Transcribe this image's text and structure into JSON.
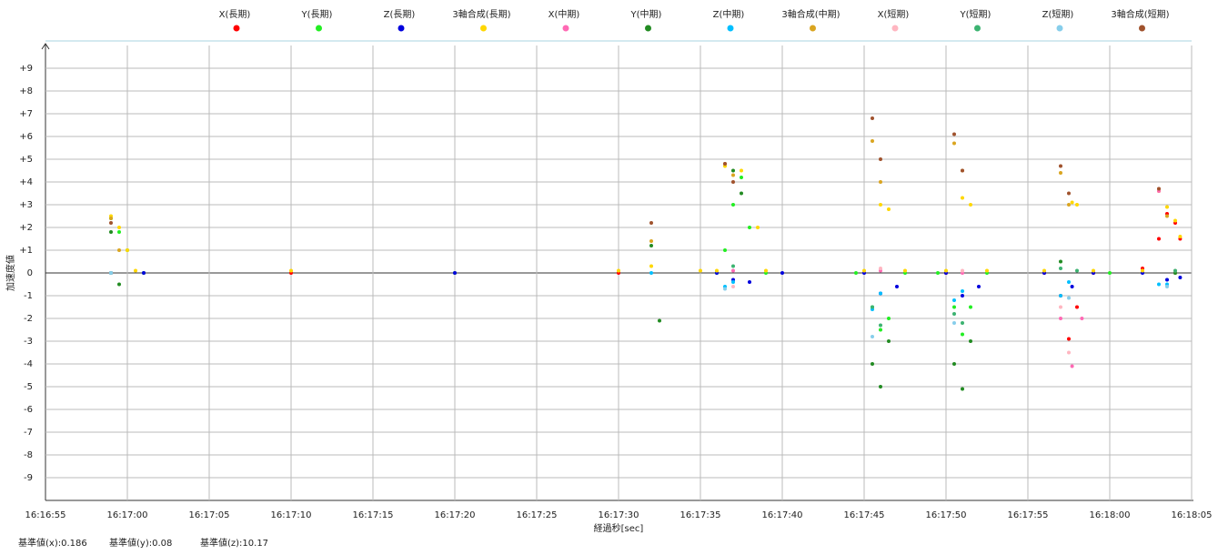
{
  "chart_data": {
    "type": "scatter",
    "x_label": "経過秒[sec]",
    "y_label": "加速度値",
    "notes": [
      "基準値(x):0.186",
      "基準値(y):0.08",
      "基準値(z):10.17"
    ],
    "xlim": [
      58615,
      58685
    ],
    "ylim": [
      -10,
      10
    ],
    "xticks": [
      {
        "value": 58615,
        "label": "16:16:55"
      },
      {
        "value": 58620,
        "label": "16:17:00"
      },
      {
        "value": 58625,
        "label": "16:17:05"
      },
      {
        "value": 58630,
        "label": "16:17:10"
      },
      {
        "value": 58635,
        "label": "16:17:15"
      },
      {
        "value": 58640,
        "label": "16:17:20"
      },
      {
        "value": 58645,
        "label": "16:17:25"
      },
      {
        "value": 58650,
        "label": "16:17:30"
      },
      {
        "value": 58655,
        "label": "16:17:35"
      },
      {
        "value": 58660,
        "label": "16:17:40"
      },
      {
        "value": 58665,
        "label": "16:17:45"
      },
      {
        "value": 58670,
        "label": "16:17:50"
      },
      {
        "value": 58675,
        "label": "16:17:55"
      },
      {
        "value": 58680,
        "label": "16:18:00"
      },
      {
        "value": 58685,
        "label": "16:18:05"
      }
    ],
    "yticks": [
      {
        "value": 9,
        "label": "+9"
      },
      {
        "value": 8,
        "label": "+8"
      },
      {
        "value": 7,
        "label": "+7"
      },
      {
        "value": 6,
        "label": "+6"
      },
      {
        "value": 5,
        "label": "+5"
      },
      {
        "value": 4,
        "label": "+4"
      },
      {
        "value": 3,
        "label": "+3"
      },
      {
        "value": 2,
        "label": "+2"
      },
      {
        "value": 1,
        "label": "+1"
      },
      0,
      -1,
      -2,
      -3,
      -4,
      -5,
      -6,
      -7,
      -8,
      -9
    ],
    "grid": true,
    "series": [
      {
        "name": "X(長期)",
        "color": "#ff0000",
        "x": [
          58619,
          58630,
          58650,
          58670,
          58676,
          58677,
          58677.5,
          58678,
          58679,
          58682,
          58683,
          58683.5,
          58684,
          58684.3
        ],
        "values": [
          0,
          0,
          0,
          0,
          0,
          -1,
          -2.9,
          -1.5,
          0,
          0.2,
          1.5,
          2.6,
          2.2,
          1.5
        ]
      },
      {
        "name": "Y(長期)",
        "color": "#22ee22",
        "x": [
          58619,
          58619.5,
          58620,
          58621,
          58640,
          58656,
          58656.5,
          58657,
          58657.5,
          58658,
          58659,
          58664.5,
          58665.5,
          58666,
          58666.5,
          58667.5,
          58669.5,
          58670.5,
          58671,
          58671.5,
          58672.5,
          58680,
          58684
        ],
        "values": [
          2.4,
          1.8,
          1.0,
          0,
          0,
          0,
          1,
          3,
          4.2,
          2,
          0,
          0,
          -1.5,
          -2.5,
          -2,
          0,
          0,
          -1.5,
          -2.7,
          -1.5,
          0,
          0,
          0
        ]
      },
      {
        "name": "Z(長期)",
        "color": "#0000dd",
        "x": [
          58619,
          58621,
          58640,
          58656,
          58657,
          58658,
          58660,
          58665,
          58666,
          58667,
          58670,
          58671,
          58672,
          58676,
          58677.7,
          58679,
          58682,
          58683.5,
          58684.3
        ],
        "values": [
          0,
          0,
          0,
          0,
          -0.3,
          -0.4,
          0,
          0,
          -0.9,
          -0.6,
          0,
          -1.0,
          -0.6,
          0,
          -0.6,
          0,
          0,
          -0.3,
          -0.2
        ]
      },
      {
        "name": "3軸合成(長期)",
        "color": "#ffd700",
        "x": [
          58619,
          58619.5,
          58620,
          58620.5,
          58630,
          58650,
          58652,
          58655,
          58656,
          58656.5,
          58657.5,
          58658.5,
          58659,
          58665,
          58666,
          58666.5,
          58667.5,
          58670,
          58671,
          58671.5,
          58672.5,
          58676,
          58677.7,
          58678,
          58679,
          58682,
          58683,
          58683.5,
          58684,
          58684.3
        ],
        "values": [
          2.5,
          2.0,
          1.0,
          0.1,
          0.1,
          0.1,
          0.3,
          0.1,
          0.1,
          4.7,
          4.5,
          2,
          0.1,
          0.1,
          3.0,
          2.8,
          0.1,
          0.1,
          3.3,
          3.0,
          0.1,
          0.1,
          3.1,
          3.0,
          0.1,
          0.1,
          3.6,
          2.9,
          2.3,
          1.6
        ]
      },
      {
        "name": "X(中期)",
        "color": "#ff69b4",
        "x": [
          58619,
          58657,
          58666,
          58671,
          58677,
          58677.7,
          58678.3,
          58683,
          58684
        ],
        "values": [
          0,
          0.1,
          0.1,
          0,
          -2,
          -4.1,
          -2,
          3.6,
          0
        ]
      },
      {
        "name": "Y(中期)",
        "color": "#228b22",
        "x": [
          58619,
          58619.5,
          58652,
          58652.5,
          58657,
          58657.5,
          58665.5,
          58666,
          58666.5,
          58670.5,
          58671,
          58671.5,
          58677,
          58684
        ],
        "values": [
          1.8,
          -0.5,
          1.2,
          -2.1,
          4.5,
          3.5,
          -4,
          -5.0,
          -3,
          -4,
          -5.1,
          -3,
          0.5,
          0
        ]
      },
      {
        "name": "Z(中期)",
        "color": "#00bfff",
        "x": [
          58619,
          58652,
          58656.5,
          58657,
          58665.5,
          58666,
          58670.5,
          58671,
          58677,
          58677.5,
          58683,
          58683.5
        ],
        "values": [
          0,
          0,
          -0.6,
          -0.4,
          -1.6,
          -0.9,
          -1.2,
          -0.8,
          -1.0,
          -0.4,
          -0.5,
          -0.5
        ]
      },
      {
        "name": "3軸合成(中期)",
        "color": "#daa520",
        "x": [
          58619,
          58619.5,
          58652,
          58656.5,
          58657,
          58665.5,
          58666,
          58670.5,
          58671,
          58677,
          58677.5,
          58683,
          58683.5
        ],
        "values": [
          2.4,
          1.0,
          1.4,
          4.8,
          4.3,
          5.8,
          4.0,
          5.7,
          4.5,
          4.4,
          3.0,
          3.7,
          2.5
        ]
      },
      {
        "name": "X(短期)",
        "color": "#ffb6c1",
        "x": [
          58619,
          58657,
          58666,
          58671,
          58677,
          58677.5,
          58683,
          58684
        ],
        "values": [
          0,
          -0.6,
          0.2,
          0.1,
          -1.5,
          -3.5,
          3.7,
          0.1
        ]
      },
      {
        "name": "Y(短期)",
        "color": "#3cb371",
        "x": [
          58619,
          58657,
          58665.5,
          58666,
          58670.5,
          58671,
          58677,
          58678,
          58684
        ],
        "values": [
          0,
          0.3,
          -1.5,
          -2.3,
          -1.8,
          -2.2,
          0.2,
          0.1,
          0.1
        ]
      },
      {
        "name": "Z(短期)",
        "color": "#87ceeb",
        "x": [
          58619,
          58656.5,
          58665.5,
          58670.5,
          58677.5,
          58683.5
        ],
        "values": [
          0,
          -0.7,
          -2.8,
          -2.2,
          -1.1,
          -0.6
        ]
      },
      {
        "name": "3軸合成(短期)",
        "color": "#a0522d",
        "x": [
          58619,
          58652,
          58656.5,
          58657,
          58665.5,
          58666,
          58670.5,
          58671,
          58677,
          58677.5,
          58683
        ],
        "values": [
          2.2,
          2.2,
          4.8,
          4.0,
          6.8,
          5.0,
          6.1,
          4.5,
          4.7,
          3.5,
          3.7
        ]
      }
    ]
  }
}
